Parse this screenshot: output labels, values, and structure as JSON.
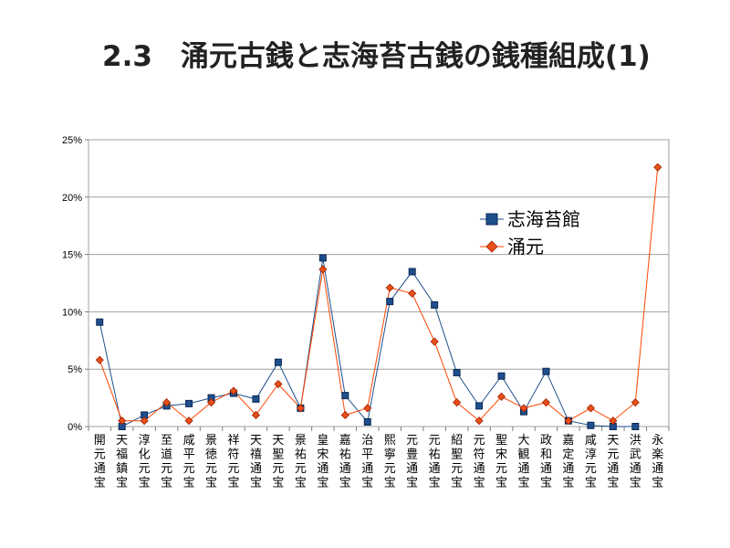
{
  "slide": {
    "title": "2.3　涌元古銭と志海苔古銭の銭種組成(1)"
  },
  "colors": {
    "series_a": "#1f4e8c",
    "series_a_fill": "#1f4e8c",
    "series_b": "#ff4500",
    "series_b_fill": "#e8501a",
    "grid": "#a0a0a0",
    "axis": "#808080"
  },
  "chart_data": {
    "type": "line",
    "title": "",
    "xlabel": "",
    "ylabel": "",
    "ylim": [
      0,
      25
    ],
    "yticks": [
      "0%",
      "5%",
      "10%",
      "15%",
      "20%",
      "25%"
    ],
    "ytick_values": [
      0,
      5,
      10,
      15,
      20,
      25
    ],
    "grid": true,
    "legend_position": "upper-right",
    "categories": [
      "開元通宝",
      "天福鎮宝",
      "淳化元宝",
      "至道元宝",
      "咸平元宝",
      "景徳元宝",
      "祥符元宝",
      "天禧通宝",
      "天聖元宝",
      "景祐元宝",
      "皇宋通宝",
      "嘉祐通宝",
      "治平通宝",
      "熙寧元宝",
      "元豊通宝",
      "元祐通宝",
      "紹聖元宝",
      "元符通宝",
      "聖宋元宝",
      "大観通宝",
      "政和通宝",
      "嘉定通宝",
      "咸淳元宝",
      "天元通宝",
      "洪武通宝",
      "永楽通宝"
    ],
    "series": [
      {
        "name": "志海苔館",
        "marker": "square",
        "values": [
          9.1,
          0.0,
          1.0,
          1.8,
          2.0,
          2.5,
          2.9,
          2.4,
          5.6,
          1.6,
          14.7,
          2.7,
          0.4,
          10.9,
          13.5,
          10.6,
          4.7,
          1.8,
          4.4,
          1.3,
          4.8,
          0.5,
          0.1,
          0.0,
          0.0,
          null
        ]
      },
      {
        "name": "涌元",
        "marker": "diamond",
        "values": [
          5.8,
          0.5,
          0.5,
          2.1,
          0.5,
          2.1,
          3.1,
          1.0,
          3.7,
          1.6,
          13.7,
          1.0,
          1.6,
          12.1,
          11.6,
          7.4,
          2.1,
          0.5,
          2.6,
          1.6,
          2.1,
          0.5,
          1.6,
          0.5,
          2.1,
          22.6
        ]
      }
    ]
  }
}
